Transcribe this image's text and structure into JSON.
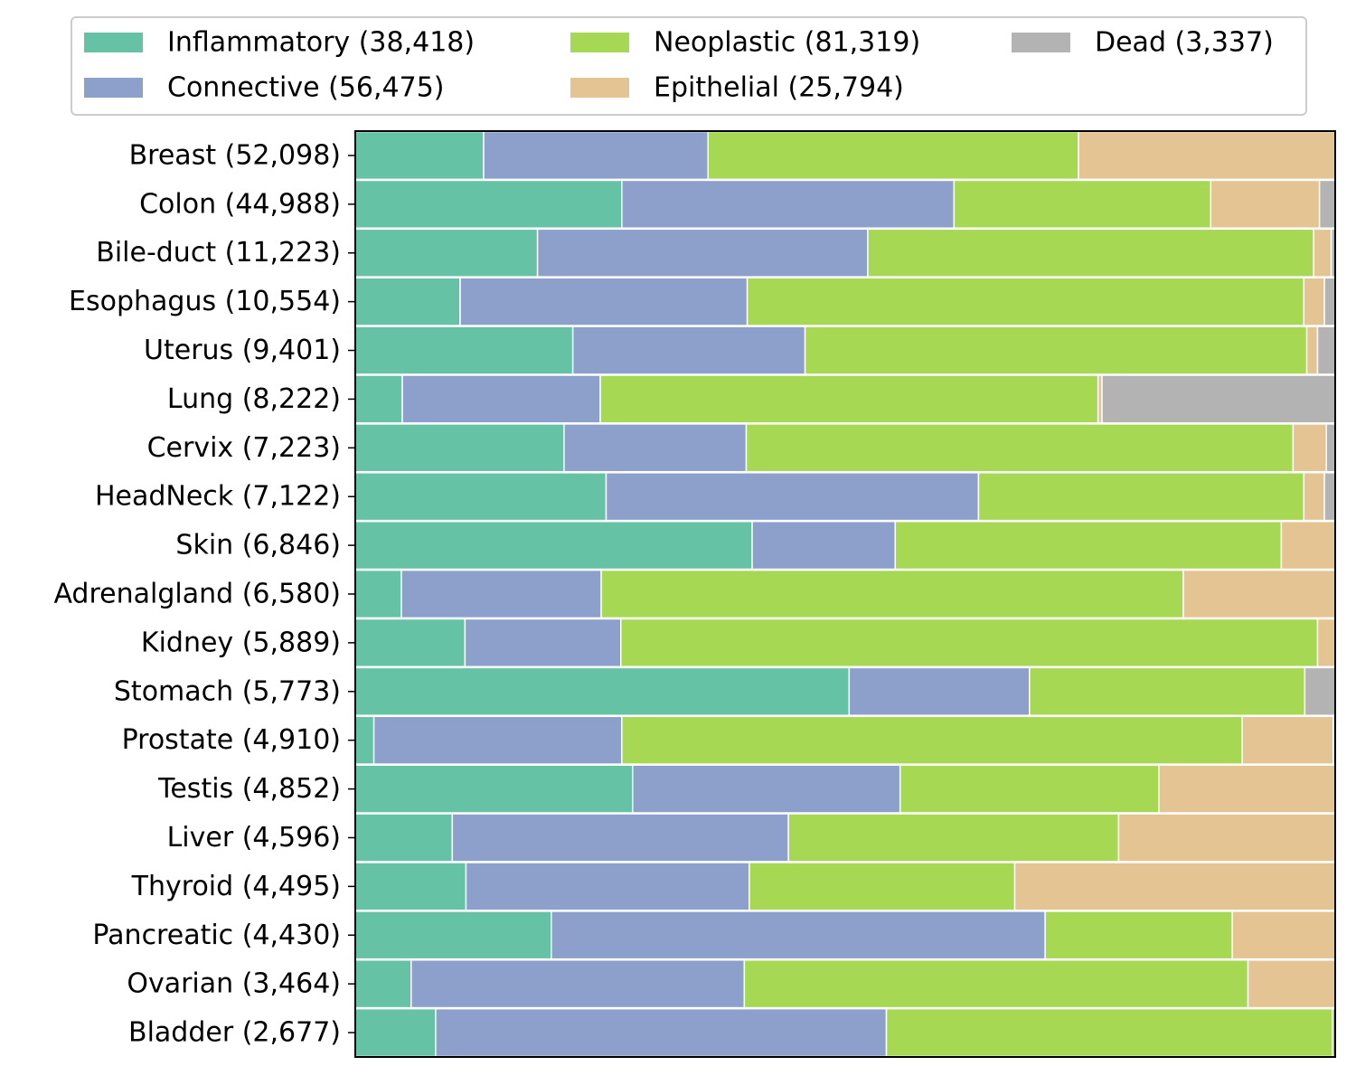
{
  "chart_data": {
    "type": "bar",
    "orientation": "horizontal",
    "stacked": true,
    "normalized": true,
    "xlim": [
      0,
      1
    ],
    "grid": false,
    "legend_position": "top",
    "categories": [
      "Breast (52,098)",
      "Colon (44,988)",
      "Bile-duct (11,223)",
      "Esophagus (10,554)",
      "Uterus (9,401)",
      "Lung (8,222)",
      "Cervix (7,223)",
      "HeadNeck (7,122)",
      "Skin (6,846)",
      "Adrenalgland (6,580)",
      "Kidney (5,889)",
      "Stomach (5,773)",
      "Prostate (4,910)",
      "Testis (4,852)",
      "Liver (4,596)",
      "Thyroid (4,495)",
      "Pancreatic (4,430)",
      "Ovarian (3,464)",
      "Bladder (2,677)"
    ],
    "series": [
      {
        "name": "Inflammatory (38,418)",
        "color": "#66c2a5",
        "values": [
          0.131,
          0.272,
          0.186,
          0.107,
          0.222,
          0.048,
          0.213,
          0.256,
          0.405,
          0.047,
          0.112,
          0.504,
          0.019,
          0.283,
          0.099,
          0.113,
          0.2,
          0.057,
          0.082
        ]
      },
      {
        "name": "Connective (56,475)",
        "color": "#8da0cb",
        "values": [
          0.229,
          0.339,
          0.337,
          0.293,
          0.237,
          0.202,
          0.186,
          0.38,
          0.146,
          0.204,
          0.159,
          0.184,
          0.253,
          0.273,
          0.343,
          0.289,
          0.504,
          0.34,
          0.46
        ]
      },
      {
        "name": "Neoplastic (81,319)",
        "color": "#a6d854",
        "values": [
          0.378,
          0.262,
          0.455,
          0.568,
          0.512,
          0.508,
          0.558,
          0.332,
          0.394,
          0.594,
          0.711,
          0.281,
          0.633,
          0.264,
          0.337,
          0.271,
          0.191,
          0.514,
          0.455
        ]
      },
      {
        "name": "Epithelial (25,794)",
        "color": "#e5c494",
        "values": [
          0.262,
          0.111,
          0.018,
          0.021,
          0.011,
          0.004,
          0.034,
          0.021,
          0.055,
          0.155,
          0.018,
          0.0,
          0.093,
          0.18,
          0.221,
          0.327,
          0.105,
          0.089,
          0.0
        ]
      },
      {
        "name": "Dead (3,337)",
        "color": "#b3b3b3",
        "values": [
          0.0,
          0.016,
          0.004,
          0.011,
          0.018,
          0.238,
          0.009,
          0.011,
          0.0,
          0.0,
          0.0,
          0.031,
          0.002,
          0.0,
          0.0,
          0.0,
          0.0,
          0.0,
          0.003
        ]
      }
    ]
  }
}
